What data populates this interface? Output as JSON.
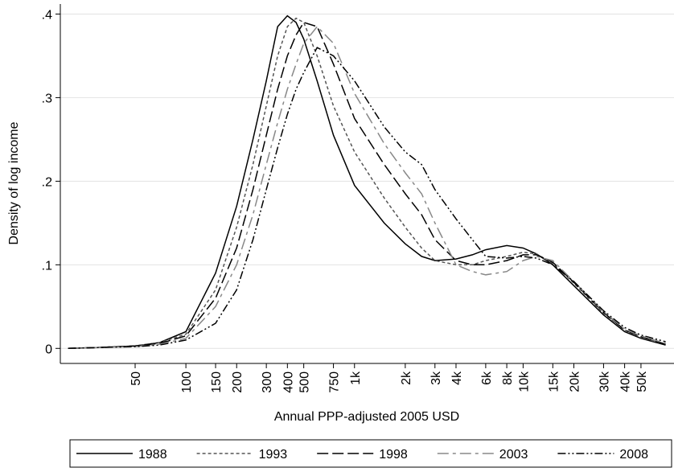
{
  "chart_data": {
    "type": "line",
    "y_label": "Density of log income",
    "x_label": "Annual PPP-adjusted 2005 USD",
    "log_x": true,
    "grid": true,
    "legend_position": "bottom",
    "xlim": [
      18,
      78500
    ],
    "ylim": [
      -0.018,
      0.412
    ],
    "yticks": [
      0,
      {
        "value": 0.1,
        "label": ".1"
      },
      {
        "value": 0.2,
        "label": ".2"
      },
      {
        "value": 0.3,
        "label": ".3"
      },
      {
        "value": 0.4,
        "label": ".4"
      }
    ],
    "xticks": [
      50,
      100,
      150,
      200,
      300,
      400,
      500,
      750,
      {
        "value": 1000,
        "label": "1k"
      },
      {
        "value": 2000,
        "label": "2k"
      },
      {
        "value": 3000,
        "label": "3k"
      },
      {
        "value": 4000,
        "label": "4k"
      },
      {
        "value": 6000,
        "label": "6k"
      },
      {
        "value": 8000,
        "label": "8k"
      },
      {
        "value": 10000,
        "label": "10k"
      },
      {
        "value": 15000,
        "label": "15k"
      },
      {
        "value": 20000,
        "label": "20k"
      },
      {
        "value": 30000,
        "label": "30k"
      },
      {
        "value": 40000,
        "label": "40k"
      },
      {
        "value": 50000,
        "label": "50k"
      }
    ],
    "x": [
      20,
      30,
      50,
      70,
      100,
      150,
      200,
      250,
      300,
      350,
      400,
      450,
      500,
      600,
      750,
      1000,
      1500,
      2000,
      2500,
      3000,
      4000,
      5000,
      6000,
      8000,
      10000,
      12000,
      15000,
      20000,
      30000,
      40000,
      50000,
      70000
    ],
    "series": [
      {
        "name": "1988",
        "color": "#000000",
        "dash": "none",
        "values": [
          0,
          0.001,
          0.003,
          0.007,
          0.02,
          0.09,
          0.17,
          0.25,
          0.32,
          0.385,
          0.398,
          0.39,
          0.37,
          0.32,
          0.255,
          0.195,
          0.15,
          0.125,
          0.11,
          0.105,
          0.107,
          0.112,
          0.118,
          0.123,
          0.12,
          0.113,
          0.1,
          0.075,
          0.04,
          0.02,
          0.012,
          0.004
        ]
      },
      {
        "name": "1993",
        "color": "#555555",
        "dash": "4 3",
        "values": [
          0,
          0.001,
          0.003,
          0.007,
          0.017,
          0.07,
          0.145,
          0.22,
          0.29,
          0.35,
          0.385,
          0.395,
          0.39,
          0.35,
          0.29,
          0.235,
          0.18,
          0.145,
          0.12,
          0.105,
          0.1,
          0.1,
          0.105,
          0.11,
          0.115,
          0.113,
          0.102,
          0.078,
          0.042,
          0.022,
          0.013,
          0.005
        ]
      },
      {
        "name": "1998",
        "color": "#000000",
        "dash": "14 5",
        "values": [
          0,
          0.001,
          0.003,
          0.006,
          0.015,
          0.06,
          0.12,
          0.19,
          0.255,
          0.31,
          0.35,
          0.375,
          0.39,
          0.385,
          0.34,
          0.275,
          0.22,
          0.185,
          0.16,
          0.13,
          0.105,
          0.1,
          0.1,
          0.105,
          0.112,
          0.112,
          0.103,
          0.079,
          0.043,
          0.022,
          0.014,
          0.005
        ]
      },
      {
        "name": "2003",
        "color": "#888888",
        "dash": "14 5 4 5",
        "values": [
          0,
          0.001,
          0.002,
          0.005,
          0.012,
          0.05,
          0.1,
          0.16,
          0.22,
          0.27,
          0.31,
          0.34,
          0.365,
          0.385,
          0.365,
          0.305,
          0.245,
          0.21,
          0.185,
          0.15,
          0.1,
          0.092,
          0.088,
          0.092,
          0.105,
          0.11,
          0.105,
          0.08,
          0.044,
          0.023,
          0.015,
          0.006
        ]
      },
      {
        "name": "2008",
        "color": "#000000",
        "dash": "10 3 2 3 2 3",
        "values": [
          0,
          0.001,
          0.002,
          0.004,
          0.01,
          0.03,
          0.07,
          0.13,
          0.19,
          0.24,
          0.28,
          0.31,
          0.33,
          0.36,
          0.35,
          0.32,
          0.265,
          0.235,
          0.22,
          0.19,
          0.155,
          0.13,
          0.11,
          0.108,
          0.11,
          0.108,
          0.1,
          0.08,
          0.045,
          0.025,
          0.016,
          0.008
        ]
      }
    ]
  }
}
